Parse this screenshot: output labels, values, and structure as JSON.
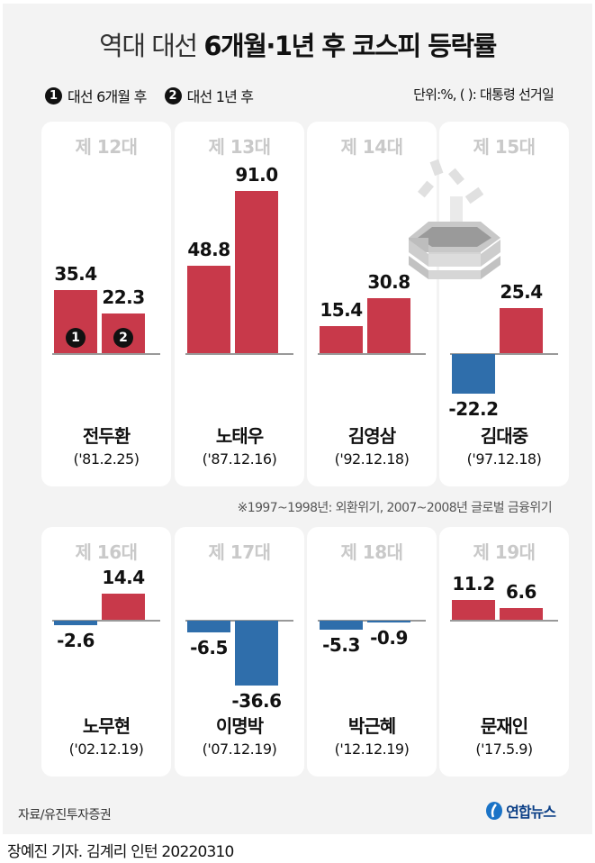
{
  "title": {
    "light": "역대 대선 ",
    "bold": "6개월·1년 후 코스피 등락률"
  },
  "legend": {
    "item1_num": "1",
    "item1": "대선 6개월 후",
    "item2_num": "2",
    "item2": "대선 1년 후"
  },
  "unit": "단위:%, (  ): 대통령 선거일",
  "note": "※1997~1998년: 외환위기, 2007~2008년 글로벌 금융위기",
  "source": "자료/유진투자증권",
  "logo": "연합뉴스",
  "credit": "장예진 기자. 김계리 인턴  20220310",
  "colors": {
    "positive": "#c8394a",
    "negative": "#2f6eab",
    "background": "#f3f3f3"
  },
  "chart_data": {
    "type": "bar",
    "series": [
      {
        "name": "대선 6개월 후"
      },
      {
        "name": "대선 1년 후"
      }
    ],
    "panels": [
      {
        "term": "제 12대",
        "president": "전두환",
        "date": "('81.2.25)",
        "values": [
          35.4,
          22.3
        ]
      },
      {
        "term": "제 13대",
        "president": "노태우",
        "date": "('87.12.16)",
        "values": [
          48.8,
          91.0
        ]
      },
      {
        "term": "제 14대",
        "president": "김영삼",
        "date": "('92.12.18)",
        "values": [
          15.4,
          30.8
        ]
      },
      {
        "term": "제 15대",
        "president": "김대중",
        "date": "('97.12.18)",
        "values": [
          -22.2,
          25.4
        ]
      },
      {
        "term": "제 16대",
        "president": "노무현",
        "date": "('02.12.19)",
        "values": [
          -2.6,
          14.4
        ]
      },
      {
        "term": "제 17대",
        "president": "이명박",
        "date": "('07.12.19)",
        "values": [
          -6.5,
          -36.6
        ]
      },
      {
        "term": "제 18대",
        "president": "박근혜",
        "date": "('12.12.19)",
        "values": [
          -5.3,
          -0.9
        ]
      },
      {
        "term": "제 19대",
        "president": "문재인",
        "date": "('17.5.9)",
        "values": [
          11.2,
          6.6
        ]
      }
    ]
  }
}
